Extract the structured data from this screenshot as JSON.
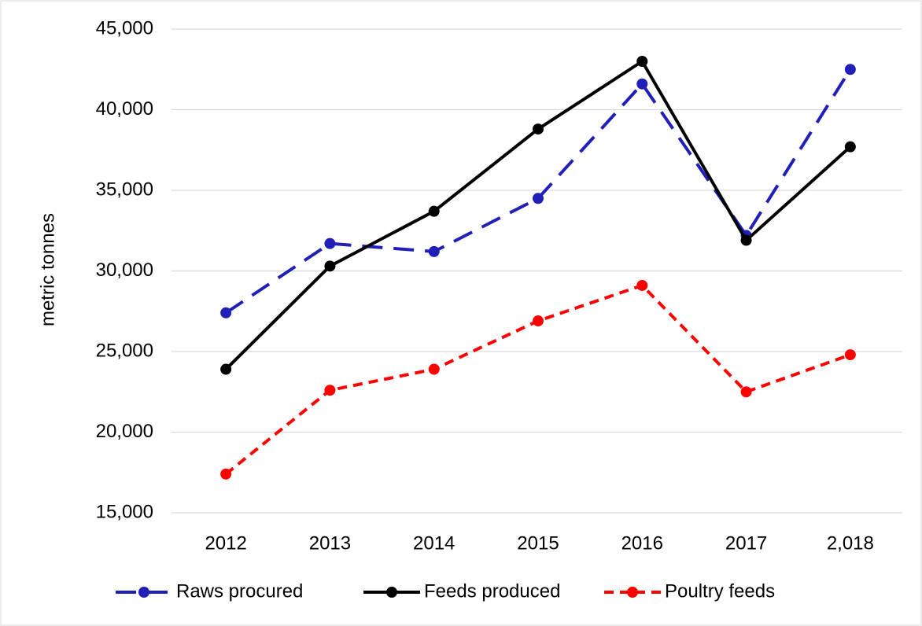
{
  "chart_data": {
    "type": "line",
    "y_label": "metric tonnes",
    "categories": [
      "2012",
      "2013",
      "2014",
      "2015",
      "2016",
      "2017",
      "2,018"
    ],
    "series": [
      {
        "name": "Raws procured",
        "color": "#2020b8",
        "style": "long-dash",
        "values": [
          27400,
          31700,
          31200,
          34500,
          41600,
          32200,
          42500
        ]
      },
      {
        "name": "Feeds produced",
        "color": "#000000",
        "style": "solid",
        "values": [
          23900,
          30300,
          33700,
          38800,
          43000,
          31900,
          37700
        ]
      },
      {
        "name": "Poultry feeds",
        "color": "#ff0000",
        "style": "dash",
        "values": [
          17400,
          22600,
          23900,
          26900,
          29100,
          22500,
          24800
        ]
      }
    ],
    "ylim": [
      15000,
      45000
    ],
    "yticks": [
      {
        "value": 15000,
        "label": "15,000"
      },
      {
        "value": 20000,
        "label": "20,000"
      },
      {
        "value": 25000,
        "label": "25,000"
      },
      {
        "value": 30000,
        "label": "30,000"
      },
      {
        "value": 35000,
        "label": "35,000"
      },
      {
        "value": 40000,
        "label": "40,000"
      },
      {
        "value": 45000,
        "label": "45,000"
      }
    ],
    "grid": true,
    "legend": "bottom"
  }
}
